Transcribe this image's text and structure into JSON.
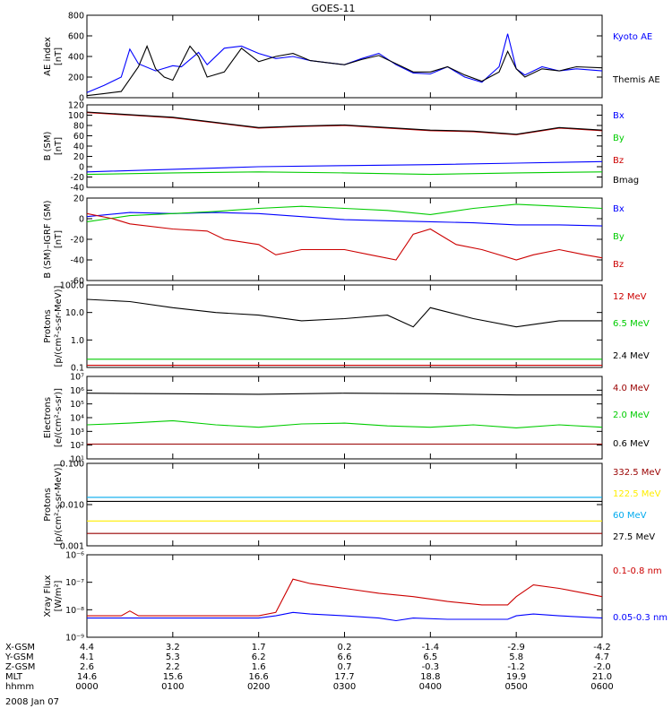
{
  "title": "GOES-11",
  "date_label": "2008 Jan 07",
  "colors": {
    "black": "#000000",
    "blue": "#0000ff",
    "green": "#00cc00",
    "red": "#cc0000",
    "darkred": "#990000",
    "yellow": "#ffee00",
    "cyan": "#00aaee"
  },
  "chart_data": [
    {
      "type": "line",
      "ylabel_lines": [
        "AE index",
        "[nT]"
      ],
      "ylim": [
        0,
        800
      ],
      "scale": "linear",
      "yticks": [
        0,
        200,
        400,
        600,
        800
      ],
      "yticklabels": [
        "0",
        "200",
        "400",
        "600",
        "800"
      ],
      "series": [
        {
          "name": "Kyoto AE",
          "color": "#0000ff",
          "x": [
            0,
            0.2,
            0.4,
            0.5,
            0.6,
            0.8,
            1.0,
            1.1,
            1.3,
            1.4,
            1.6,
            1.8,
            2.0,
            2.2,
            2.4,
            2.6,
            2.8,
            3.0,
            3.2,
            3.4,
            3.6,
            3.8,
            4.0,
            4.2,
            4.4,
            4.6,
            4.8,
            4.9,
            5.0,
            5.1,
            5.3,
            5.5,
            5.7,
            6.0
          ],
          "y": [
            50,
            120,
            200,
            470,
            330,
            260,
            310,
            300,
            440,
            320,
            480,
            500,
            430,
            380,
            400,
            360,
            340,
            320,
            380,
            430,
            320,
            240,
            230,
            300,
            200,
            150,
            300,
            620,
            280,
            220,
            300,
            260,
            280,
            260
          ]
        },
        {
          "name": "Themis AE",
          "color": "#000000",
          "x": [
            0,
            0.2,
            0.4,
            0.5,
            0.6,
            0.7,
            0.8,
            0.9,
            1.0,
            1.2,
            1.3,
            1.4,
            1.6,
            1.8,
            2.0,
            2.2,
            2.4,
            2.6,
            2.8,
            3.0,
            3.2,
            3.4,
            3.6,
            3.8,
            4.0,
            4.2,
            4.4,
            4.6,
            4.8,
            4.9,
            5.0,
            5.1,
            5.3,
            5.5,
            5.7,
            6.0
          ],
          "y": [
            20,
            40,
            60,
            180,
            300,
            500,
            280,
            200,
            170,
            500,
            400,
            200,
            250,
            480,
            350,
            400,
            430,
            360,
            340,
            320,
            370,
            410,
            330,
            250,
            250,
            300,
            220,
            160,
            250,
            450,
            280,
            200,
            280,
            260,
            300,
            290
          ]
        }
      ],
      "legend": [
        "Kyoto AE",
        "Themis AE"
      ]
    },
    {
      "type": "line",
      "ylabel_lines": [
        "B (SM)",
        "[nT]"
      ],
      "ylim": [
        -40,
        120
      ],
      "scale": "linear",
      "yticks": [
        -40,
        -20,
        0,
        20,
        40,
        60,
        80,
        100,
        120
      ],
      "yticklabels": [
        "-40",
        "-20",
        "0",
        "20",
        "40",
        "60",
        "80",
        "100",
        "120"
      ],
      "series": [
        {
          "name": "Bx",
          "color": "#0000ff",
          "x": [
            0,
            1,
            2,
            3,
            4,
            5,
            6
          ],
          "y": [
            -10,
            -5,
            0,
            2,
            4,
            7,
            10
          ]
        },
        {
          "name": "By",
          "color": "#00cc00",
          "x": [
            0,
            1,
            2,
            3,
            4,
            5,
            6
          ],
          "y": [
            -15,
            -12,
            -10,
            -12,
            -15,
            -12,
            -10
          ]
        },
        {
          "name": "Bz",
          "color": "#cc0000",
          "x": [
            0,
            0.5,
            1,
            1.5,
            2,
            2.5,
            3,
            3.5,
            4,
            4.5,
            5,
            5.5,
            6
          ],
          "y": [
            105,
            100,
            95,
            85,
            75,
            78,
            80,
            75,
            70,
            68,
            62,
            75,
            70
          ]
        },
        {
          "name": "Bmag",
          "color": "#000000",
          "x": [
            0,
            0.5,
            1,
            1.5,
            2,
            2.5,
            3,
            3.5,
            4,
            4.5,
            5,
            5.5,
            6
          ],
          "y": [
            106,
            101,
            96,
            86,
            76,
            79,
            81,
            76,
            71,
            69,
            63,
            76,
            71
          ]
        }
      ],
      "legend": [
        "Bx",
        "By",
        "Bz",
        "Bmag"
      ]
    },
    {
      "type": "line",
      "ylabel_lines": [
        "B (SM)–IGRF (SM)",
        "[nT]"
      ],
      "ylim": [
        -60,
        20
      ],
      "scale": "linear",
      "yticks": [
        -60,
        -40,
        -20,
        0,
        20
      ],
      "yticklabels": [
        "-60",
        "-40",
        "-20",
        "0",
        "20"
      ],
      "series": [
        {
          "name": "Bx",
          "color": "#0000ff",
          "x": [
            0,
            0.5,
            1,
            1.5,
            2,
            2.5,
            3,
            3.5,
            4,
            4.5,
            5,
            5.5,
            6
          ],
          "y": [
            2,
            6,
            5,
            6,
            5,
            2,
            -1,
            -2,
            -3,
            -4,
            -6,
            -6,
            -7
          ]
        },
        {
          "name": "By",
          "color": "#00cc00",
          "x": [
            0,
            0.5,
            1,
            1.5,
            2,
            2.5,
            3,
            3.5,
            4,
            4.5,
            5,
            5.5,
            6
          ],
          "y": [
            -3,
            3,
            5,
            7,
            10,
            12,
            10,
            8,
            4,
            10,
            14,
            12,
            10
          ]
        },
        {
          "name": "Bz",
          "color": "#cc0000",
          "x": [
            0,
            0.3,
            0.5,
            1,
            1.4,
            1.6,
            2,
            2.2,
            2.5,
            3,
            3.3,
            3.6,
            3.8,
            4.0,
            4.3,
            4.6,
            5.0,
            5.2,
            5.5,
            5.8,
            6.0
          ],
          "y": [
            5,
            0,
            -5,
            -10,
            -12,
            -20,
            -25,
            -35,
            -30,
            -30,
            -35,
            -40,
            -15,
            -10,
            -25,
            -30,
            -40,
            -35,
            -30,
            -35,
            -38
          ]
        }
      ],
      "legend": [
        "Bx",
        "By",
        "Bz"
      ]
    },
    {
      "type": "line",
      "ylabel_lines": [
        "Protons",
        "[p/(cm²-s-sr-MeV)]"
      ],
      "ylim": [
        0.1,
        100
      ],
      "scale": "log",
      "yticks": [
        0.1,
        1,
        10,
        100
      ],
      "yticklabels": [
        "0.1",
        "1.0",
        "10.0",
        "100.0"
      ],
      "series": [
        {
          "name": "12 MeV",
          "color": "#cc0000",
          "x": [
            0,
            6
          ],
          "y": [
            0.12,
            0.12
          ]
        },
        {
          "name": "6.5 MeV",
          "color": "#00cc00",
          "x": [
            0,
            6
          ],
          "y": [
            0.2,
            0.2
          ]
        },
        {
          "name": "2.4 MeV",
          "color": "#000000",
          "x": [
            0,
            0.5,
            1,
            1.5,
            2,
            2.5,
            3,
            3.5,
            3.8,
            4.0,
            4.5,
            5,
            5.5,
            6
          ],
          "y": [
            30,
            25,
            15,
            10,
            8,
            5,
            6,
            8,
            3,
            15,
            6,
            3,
            5,
            5
          ]
        }
      ],
      "legend": [
        "12 MeV",
        "6.5 MeV",
        "2.4 MeV"
      ]
    },
    {
      "type": "line",
      "ylabel_lines": [
        "Electrons",
        "[e/(cm²-s-sr)]"
      ],
      "ylim": [
        10,
        10000000
      ],
      "scale": "log",
      "yticks": [
        10,
        100,
        1000,
        10000,
        100000,
        1000000,
        10000000
      ],
      "yticklabels": [
        "10¹",
        "10²",
        "10³",
        "10⁴",
        "10⁵",
        "10⁶",
        "10⁷"
      ],
      "series": [
        {
          "name": "4.0 MeV",
          "color": "#990000",
          "x": [
            0,
            6
          ],
          "y": [
            120,
            120
          ]
        },
        {
          "name": "2.0 MeV",
          "color": "#00cc00",
          "x": [
            0,
            0.5,
            1,
            1.5,
            2,
            2.5,
            3,
            3.5,
            4,
            4.5,
            5,
            5.5,
            6
          ],
          "y": [
            3000,
            4000,
            6000,
            3000,
            2000,
            3500,
            4000,
            2500,
            2000,
            3000,
            1800,
            3000,
            2000
          ]
        },
        {
          "name": "0.6 MeV",
          "color": "#000000",
          "x": [
            0,
            1,
            2,
            3,
            4,
            5,
            6
          ],
          "y": [
            600000,
            550000,
            500000,
            600000,
            550000,
            450000,
            450000
          ]
        }
      ],
      "legend": [
        "4.0 MeV",
        "2.0 MeV",
        "0.6 MeV"
      ]
    },
    {
      "type": "line",
      "ylabel_lines": [
        "Protons",
        "[p/(cm²-s-sr-MeV)]"
      ],
      "ylim": [
        0.001,
        0.1
      ],
      "scale": "log",
      "yticks": [
        0.001,
        0.01,
        0.1
      ],
      "yticklabels": [
        "0.001",
        "0.010",
        "0.100"
      ],
      "series": [
        {
          "name": "332.5 MeV",
          "color": "#990000",
          "x": [
            0,
            6
          ],
          "y": [
            0.002,
            0.002
          ]
        },
        {
          "name": "122.5 MeV",
          "color": "#ffee00",
          "x": [
            0,
            6
          ],
          "y": [
            0.004,
            0.004
          ]
        },
        {
          "name": "60 MeV",
          "color": "#00aaee",
          "x": [
            0,
            6
          ],
          "y": [
            0.015,
            0.015
          ]
        },
        {
          "name": "27.5 MeV",
          "color": "#000000",
          "x": [
            0,
            6
          ],
          "y": [
            0.012,
            0.012
          ]
        }
      ],
      "legend": [
        "332.5 MeV",
        "122.5 MeV",
        "60 MeV",
        "27.5 MeV"
      ]
    },
    {
      "type": "line",
      "ylabel_lines": [
        "Xray Flux",
        "[W/m²]"
      ],
      "ylim": [
        1e-09,
        1e-06
      ],
      "scale": "log",
      "yticks": [
        1e-09,
        1e-08,
        1e-07,
        1e-06
      ],
      "yticklabels": [
        "10⁻⁹",
        "10⁻⁸",
        "10⁻⁷",
        "10⁻⁶"
      ],
      "series": [
        {
          "name": "0.1-0.8 nm",
          "color": "#cc0000",
          "x": [
            0,
            0.4,
            0.5,
            0.6,
            1,
            1.5,
            2.0,
            2.2,
            2.4,
            2.6,
            3.0,
            3.4,
            3.8,
            4.2,
            4.6,
            4.9,
            5.0,
            5.2,
            5.5,
            5.8,
            6.0
          ],
          "y": [
            6e-09,
            6e-09,
            9e-09,
            6e-09,
            6e-09,
            6e-09,
            6e-09,
            8e-09,
            1.3e-07,
            9e-08,
            6e-08,
            4e-08,
            3e-08,
            2e-08,
            1.5e-08,
            1.5e-08,
            3e-08,
            8e-08,
            6e-08,
            4e-08,
            3e-08
          ]
        },
        {
          "name": "0.05-0.3 nm",
          "color": "#0000ff",
          "x": [
            0,
            1,
            2.0,
            2.2,
            2.4,
            2.6,
            3.0,
            3.4,
            3.6,
            3.8,
            4.2,
            4.6,
            4.9,
            5.0,
            5.2,
            5.5,
            6.0
          ],
          "y": [
            5e-09,
            5e-09,
            5e-09,
            6e-09,
            8e-09,
            7e-09,
            6e-09,
            5e-09,
            4e-09,
            5e-09,
            4.5e-09,
            4.5e-09,
            4.5e-09,
            6e-09,
            7e-09,
            6e-09,
            5e-09
          ]
        }
      ],
      "legend": [
        "0.1-0.8 nm",
        "0.05-0.3 nm"
      ]
    }
  ],
  "xticklabels": [
    "0000",
    "0100",
    "0200",
    "0300",
    "0400",
    "0500",
    "0600"
  ],
  "ephemeris": [
    {
      "label": "X-GSM",
      "values": [
        "4.4",
        "3.2",
        "1.7",
        "0.2",
        "-1.4",
        "-2.9",
        "-4.2"
      ]
    },
    {
      "label": "Y-GSM",
      "values": [
        "4.1",
        "5.3",
        "6.2",
        "6.6",
        "6.5",
        "5.8",
        "4.7"
      ]
    },
    {
      "label": "Z-GSM",
      "values": [
        "2.6",
        "2.2",
        "1.6",
        "0.7",
        "-0.3",
        "-1.2",
        "-2.0"
      ]
    },
    {
      "label": "MLT",
      "values": [
        "14.6",
        "15.6",
        "16.6",
        "17.7",
        "18.8",
        "19.9",
        "21.0"
      ]
    },
    {
      "label": "hhmm",
      "values": [
        "0000",
        "0100",
        "0200",
        "0300",
        "0400",
        "0500",
        "0600"
      ]
    }
  ]
}
